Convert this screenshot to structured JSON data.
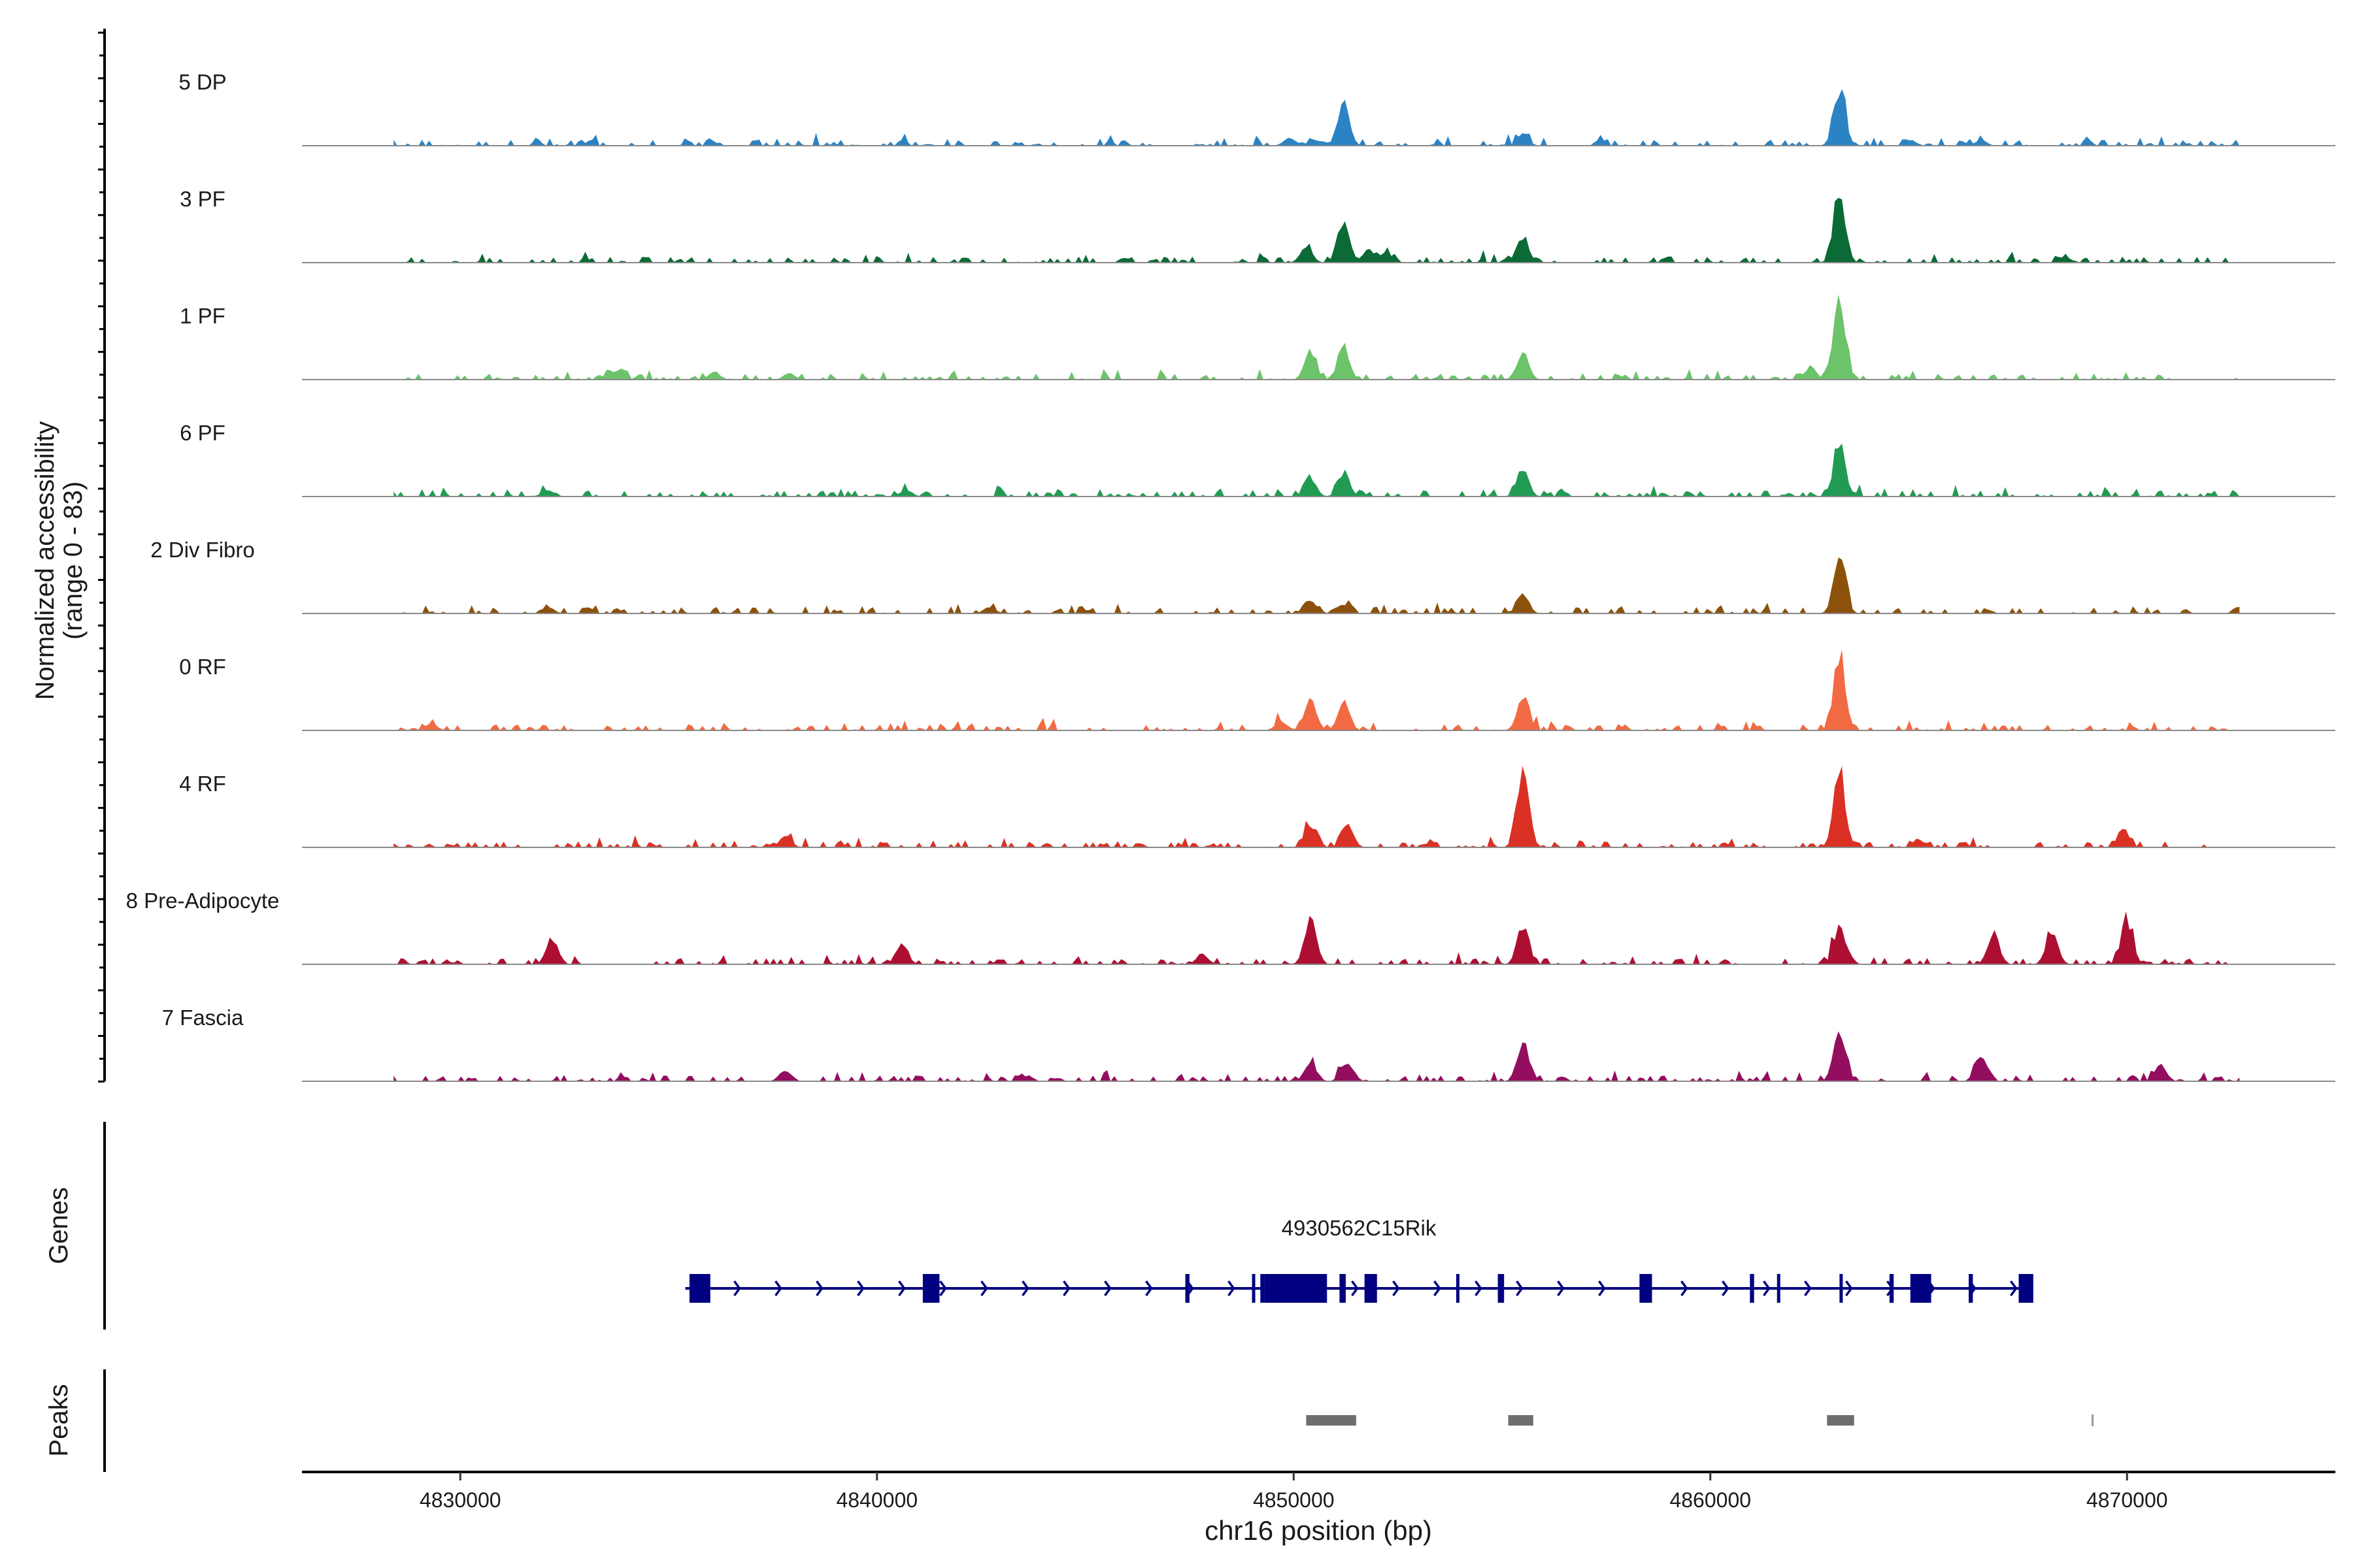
{
  "chart_data": {
    "type": "area",
    "title": "",
    "ylabel": "Normalized accessibility\n(range 0 - 83)",
    "xlabel": "chr16 position (bp)",
    "xlim": [
      4826200,
      4875000
    ],
    "ylim": [
      0,
      83
    ],
    "x_ticks": [
      4830000,
      4840000,
      4850000,
      4860000,
      4870000
    ],
    "x_tick_labels": [
      "4830000",
      "4840000",
      "4850000",
      "4860000",
      "4870000"
    ],
    "series": [
      {
        "name": "5 DP",
        "color": "#2b83c4",
        "peaks": [
          [
            4851200,
            40
          ],
          [
            4863100,
            52
          ],
          [
            4855500,
            10
          ],
          [
            4849900,
            8
          ],
          [
            4850500,
            6
          ],
          [
            4864800,
            5
          ],
          [
            4866500,
            5
          ]
        ]
      },
      {
        "name": "3 PF",
        "color": "#0b6a35",
        "peaks": [
          [
            4851200,
            40
          ],
          [
            4855500,
            25
          ],
          [
            4863100,
            60
          ],
          [
            4850300,
            15
          ],
          [
            4851800,
            12
          ],
          [
            4852200,
            8
          ],
          [
            4868500,
            6
          ]
        ]
      },
      {
        "name": "1 PF",
        "color": "#6cc36a",
        "peaks": [
          [
            4851200,
            30
          ],
          [
            4850400,
            25
          ],
          [
            4855500,
            27
          ],
          [
            4863100,
            75
          ],
          [
            4862400,
            12
          ],
          [
            4833800,
            8
          ],
          [
            4836100,
            7
          ],
          [
            4837900,
            6
          ]
        ]
      },
      {
        "name": "6 PF",
        "color": "#219b53",
        "peaks": [
          [
            4851200,
            20
          ],
          [
            4850400,
            16
          ],
          [
            4855500,
            25
          ],
          [
            4863100,
            52
          ],
          [
            4832100,
            7
          ],
          [
            4840700,
            6
          ]
        ]
      },
      {
        "name": "2 Div Fibro",
        "color": "#8c510a",
        "peaks": [
          [
            4850400,
            12
          ],
          [
            4851200,
            8
          ],
          [
            4855500,
            18
          ],
          [
            4863100,
            55
          ],
          [
            4832100,
            6
          ],
          [
            4842700,
            6
          ]
        ]
      },
      {
        "name": "0 RF",
        "color": "#f26a43",
        "peaks": [
          [
            4850400,
            30
          ],
          [
            4851200,
            28
          ],
          [
            4855500,
            31
          ],
          [
            4863100,
            70
          ],
          [
            4829300,
            6
          ],
          [
            4849700,
            8
          ]
        ]
      },
      {
        "name": "4 RF",
        "color": "#db3125",
        "peaks": [
          [
            4855500,
            75
          ],
          [
            4850400,
            22
          ],
          [
            4851300,
            20
          ],
          [
            4863100,
            70
          ],
          [
            4837800,
            11
          ],
          [
            4869900,
            16
          ],
          [
            4865000,
            8
          ]
        ]
      },
      {
        "name": "8 Pre-Adipocyte",
        "color": "#ad0f32",
        "peaks": [
          [
            4850400,
            42
          ],
          [
            4855500,
            35
          ],
          [
            4863100,
            35
          ],
          [
            4832200,
            25
          ],
          [
            4840600,
            20
          ],
          [
            4870000,
            40
          ],
          [
            4868200,
            30
          ],
          [
            4866800,
            28
          ],
          [
            4847800,
            10
          ]
        ]
      },
      {
        "name": "7 Fascia",
        "color": "#930e5f",
        "peaks": [
          [
            4855500,
            32
          ],
          [
            4863100,
            50
          ],
          [
            4850400,
            18
          ],
          [
            4851300,
            18
          ],
          [
            4866500,
            24
          ],
          [
            4870800,
            15
          ],
          [
            4837800,
            11
          ]
        ]
      }
    ],
    "genes": {
      "panel_label": "Genes",
      "name": "4930562C15Rik",
      "strand": "+",
      "start": 4835400,
      "end": 4867600,
      "exons": [
        [
          4835500,
          4836000
        ],
        [
          4841100,
          4841500
        ],
        [
          4847400,
          4847500
        ],
        [
          4849000,
          4849050
        ],
        [
          4849200,
          4849300
        ],
        [
          4849300,
          4850800
        ],
        [
          4851100,
          4851250
        ],
        [
          4851700,
          4852000
        ],
        [
          4853900,
          4853950
        ],
        [
          4854900,
          4855050
        ],
        [
          4858300,
          4858600
        ],
        [
          4860950,
          4861050
        ],
        [
          4861600,
          4861650
        ],
        [
          4863100,
          4863150
        ],
        [
          4864300,
          4864400
        ],
        [
          4864800,
          4865300
        ],
        [
          4866200,
          4866300
        ],
        [
          4867400,
          4867750
        ]
      ]
    },
    "peaks_track": {
      "panel_label": "Peaks",
      "regions": [
        [
          4850300,
          4851500
        ],
        [
          4855150,
          4855750
        ],
        [
          4862800,
          4863450
        ],
        [
          4869150,
          4869170
        ]
      ]
    }
  }
}
